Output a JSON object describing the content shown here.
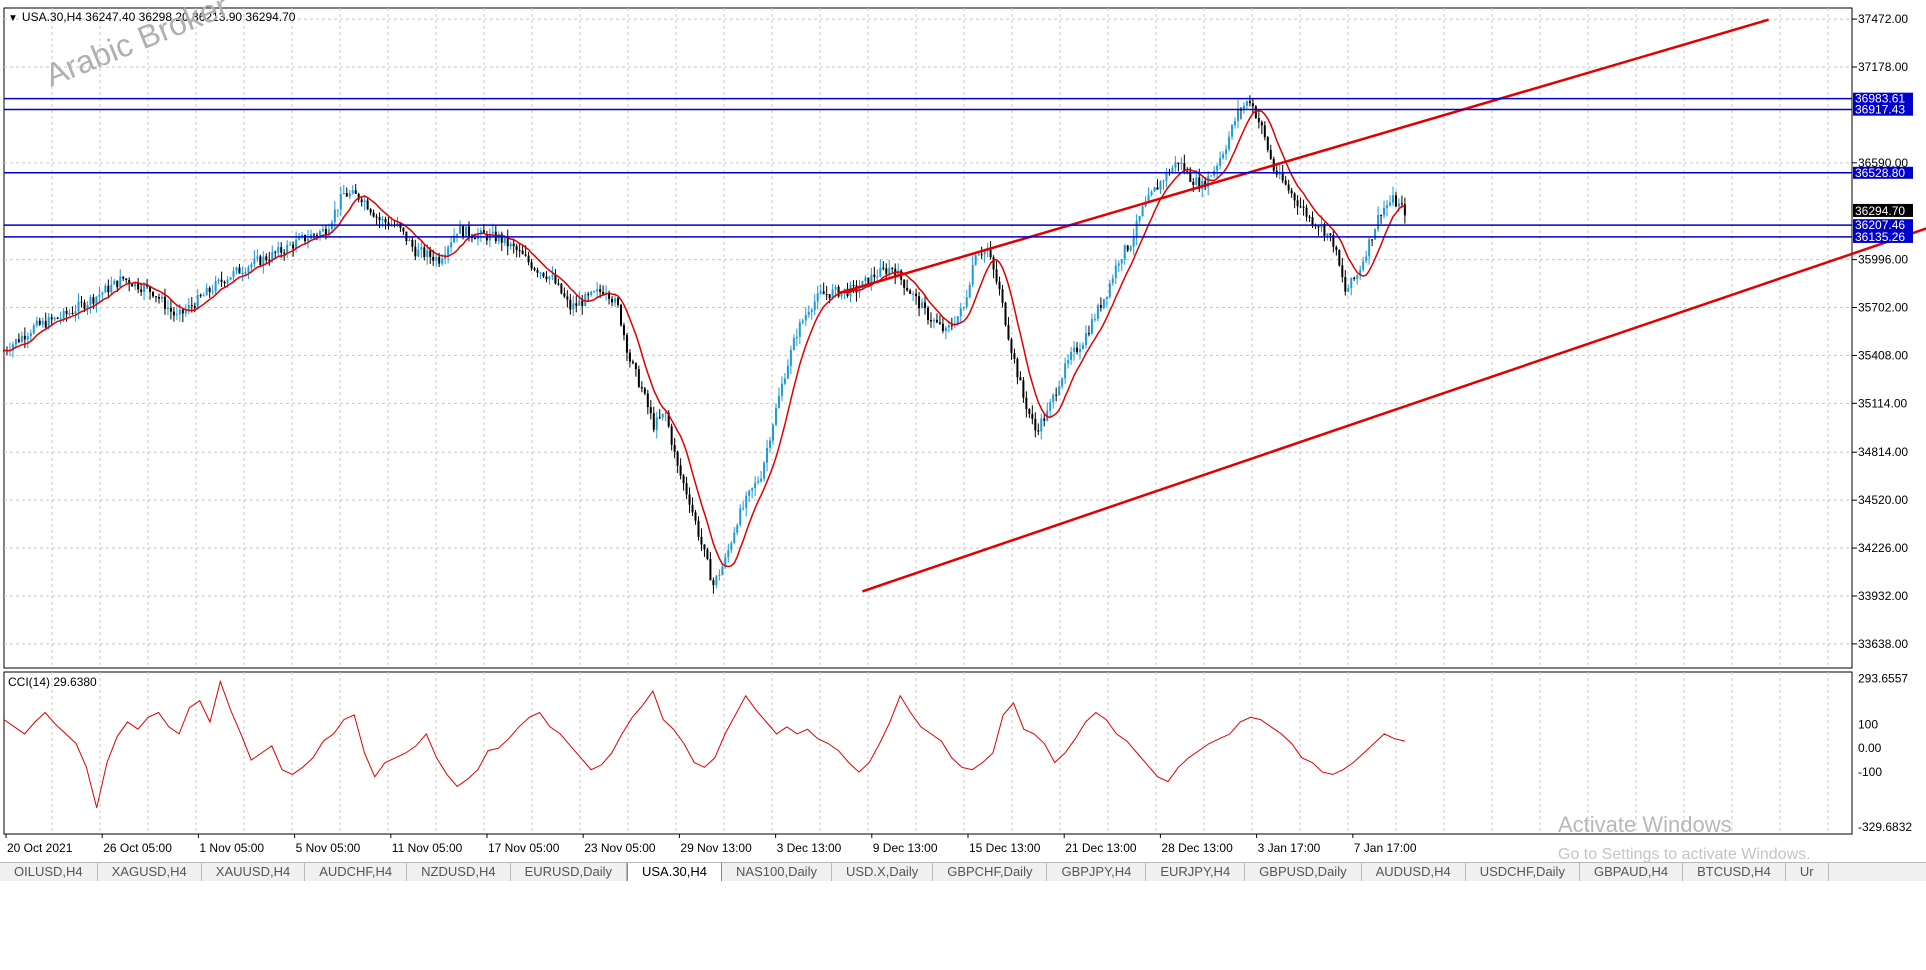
{
  "window": {
    "header": "USA.30,H4  36247.40 36298.20 36213.90 36294.70",
    "watermark": "Arabic Broker"
  },
  "colors": {
    "up": "#1e9bd7",
    "down": "#000000",
    "ma": "#e00000",
    "channel": "#e00000",
    "hline": "#0000cc",
    "cci": "#e00000"
  },
  "chart_data": {
    "type": "candlestick",
    "symbol": "USA.30",
    "timeframe": "H4",
    "ohlc": {
      "open": 36247.4,
      "high": 36298.2,
      "low": 36213.9,
      "close": 36294.7
    },
    "ylim": [
      33490,
      37540
    ],
    "price_ticks": [
      "37472.00",
      "37178.00",
      "36590.00",
      "35996.00",
      "35702.00",
      "35408.00",
      "35114.00",
      "34814.00",
      "34520.00",
      "34226.00",
      "33932.00",
      "33638.00"
    ],
    "current_price": "36294.70",
    "horizontal_levels": [
      {
        "label": "36983.61",
        "value": 36983.61
      },
      {
        "label": "36917.43",
        "value": 36917.43
      },
      {
        "label": "36528.80",
        "value": 36528.8
      },
      {
        "label": "36207.46",
        "value": 36207.46
      },
      {
        "label": "36135.26",
        "value": 36135.26
      }
    ],
    "x_labels": [
      "20 Oct 2021",
      "26 Oct 05:00",
      "1 Nov 05:00",
      "5 Nov 05:00",
      "11 Nov 05:00",
      "17 Nov 05:00",
      "23 Nov 05:00",
      "29 Nov 13:00",
      "3 Dec 13:00",
      "9 Dec 13:00",
      "15 Dec 13:00",
      "21 Dec 13:00",
      "28 Dec 13:00",
      "3 Jan 17:00",
      "7 Jan 17:00"
    ],
    "close_path": [
      [
        0,
        35440
      ],
      [
        10,
        35580
      ],
      [
        20,
        35650
      ],
      [
        30,
        35760
      ],
      [
        40,
        35880
      ],
      [
        50,
        35800
      ],
      [
        58,
        35640
      ],
      [
        66,
        35760
      ],
      [
        74,
        35880
      ],
      [
        82,
        35960
      ],
      [
        92,
        36040
      ],
      [
        100,
        36120
      ],
      [
        108,
        36180
      ],
      [
        114,
        36400
      ],
      [
        120,
        36380
      ],
      [
        126,
        36240
      ],
      [
        132,
        36200
      ],
      [
        138,
        36050
      ],
      [
        146,
        36000
      ],
      [
        152,
        36180
      ],
      [
        158,
        36150
      ],
      [
        166,
        36130
      ],
      [
        172,
        36050
      ],
      [
        178,
        35950
      ],
      [
        184,
        35880
      ],
      [
        190,
        35700
      ],
      [
        196,
        35760
      ],
      [
        202,
        35820
      ],
      [
        206,
        35700
      ],
      [
        210,
        35380
      ],
      [
        214,
        35200
      ],
      [
        218,
        34980
      ],
      [
        222,
        35050
      ],
      [
        226,
        34720
      ],
      [
        230,
        34520
      ],
      [
        234,
        34250
      ],
      [
        238,
        34000
      ],
      [
        242,
        34150
      ],
      [
        246,
        34400
      ],
      [
        250,
        34550
      ],
      [
        254,
        34680
      ],
      [
        258,
        35000
      ],
      [
        262,
        35300
      ],
      [
        266,
        35550
      ],
      [
        270,
        35700
      ],
      [
        274,
        35780
      ],
      [
        280,
        35800
      ],
      [
        286,
        35810
      ],
      [
        292,
        35900
      ],
      [
        298,
        35950
      ],
      [
        304,
        35800
      ],
      [
        310,
        35650
      ],
      [
        316,
        35550
      ],
      [
        322,
        35700
      ],
      [
        326,
        36050
      ],
      [
        330,
        36050
      ],
      [
        334,
        35800
      ],
      [
        338,
        35450
      ],
      [
        342,
        35150
      ],
      [
        346,
        34950
      ],
      [
        350,
        35050
      ],
      [
        354,
        35250
      ],
      [
        358,
        35400
      ],
      [
        362,
        35500
      ],
      [
        366,
        35650
      ],
      [
        370,
        35800
      ],
      [
        374,
        36000
      ],
      [
        378,
        36100
      ],
      [
        382,
        36300
      ],
      [
        386,
        36420
      ],
      [
        390,
        36520
      ],
      [
        394,
        36600
      ],
      [
        398,
        36500
      ],
      [
        402,
        36450
      ],
      [
        406,
        36550
      ],
      [
        410,
        36700
      ],
      [
        414,
        36900
      ],
      [
        418,
        36980
      ],
      [
        422,
        36800
      ],
      [
        426,
        36550
      ],
      [
        430,
        36450
      ],
      [
        434,
        36350
      ],
      [
        438,
        36250
      ],
      [
        442,
        36200
      ],
      [
        446,
        36100
      ],
      [
        450,
        35800
      ],
      [
        454,
        35900
      ],
      [
        458,
        36100
      ],
      [
        462,
        36300
      ],
      [
        466,
        36360
      ],
      [
        470,
        36294
      ]
    ],
    "ma_period_label": "MA",
    "channel_upper": [
      [
        280,
        35790
      ],
      [
        592,
        37468
      ]
    ],
    "channel_lower": [
      [
        288,
        33960
      ],
      [
        740,
        36780
      ]
    ],
    "cci": {
      "label": "CCI(14) 29.6380",
      "ylim": [
        -360,
        320
      ],
      "ticks": [
        "293.6557",
        "100",
        "0.00",
        "-100",
        "-329.6832"
      ],
      "values": [
        120,
        90,
        60,
        110,
        150,
        100,
        60,
        20,
        -80,
        -250,
        -60,
        50,
        110,
        80,
        130,
        150,
        90,
        60,
        170,
        200,
        110,
        280,
        160,
        60,
        -50,
        -20,
        10,
        -90,
        -110,
        -80,
        -40,
        30,
        60,
        120,
        140,
        -20,
        -120,
        -60,
        -40,
        -20,
        10,
        60,
        -40,
        -110,
        -160,
        -130,
        -90,
        -10,
        0,
        40,
        90,
        130,
        150,
        90,
        60,
        10,
        -40,
        -90,
        -70,
        -20,
        60,
        130,
        180,
        240,
        120,
        80,
        20,
        -60,
        -80,
        -40,
        60,
        140,
        220,
        160,
        110,
        60,
        90,
        60,
        80,
        40,
        20,
        -10,
        -60,
        -100,
        -60,
        20,
        110,
        220,
        150,
        90,
        60,
        30,
        -40,
        -80,
        -90,
        -60,
        -20,
        140,
        190,
        80,
        60,
        20,
        -60,
        -20,
        40,
        110,
        150,
        120,
        60,
        30,
        -20,
        -70,
        -120,
        -140,
        -80,
        -40,
        -10,
        20,
        40,
        60,
        110,
        130,
        120,
        90,
        60,
        20,
        -40,
        -60,
        -100,
        -110,
        -90,
        -60,
        -20,
        20,
        60,
        40,
        30
      ],
      "end_value": 29.638
    }
  },
  "tabs": [
    "OILUSD,H4",
    "XAGUSD,H4",
    "XAUUSD,H4",
    "AUDCHF,H4",
    "NZDUSD,H4",
    "EURUSD,Daily",
    "USA.30,H4",
    "NAS100,Daily",
    "USD.X,Daily",
    "GBPCHF,Daily",
    "GBPJPY,H4",
    "EURJPY,H4",
    "GBPUSD,Daily",
    "AUDUSD,H4",
    "USDCHF,Daily",
    "GBPAUD,H4",
    "BTCUSD,H4",
    "Ur"
  ],
  "active_tab": 6,
  "overlay": {
    "activate_title": "Activate Windows",
    "activate_sub": "Go to Settings to activate Windows."
  }
}
